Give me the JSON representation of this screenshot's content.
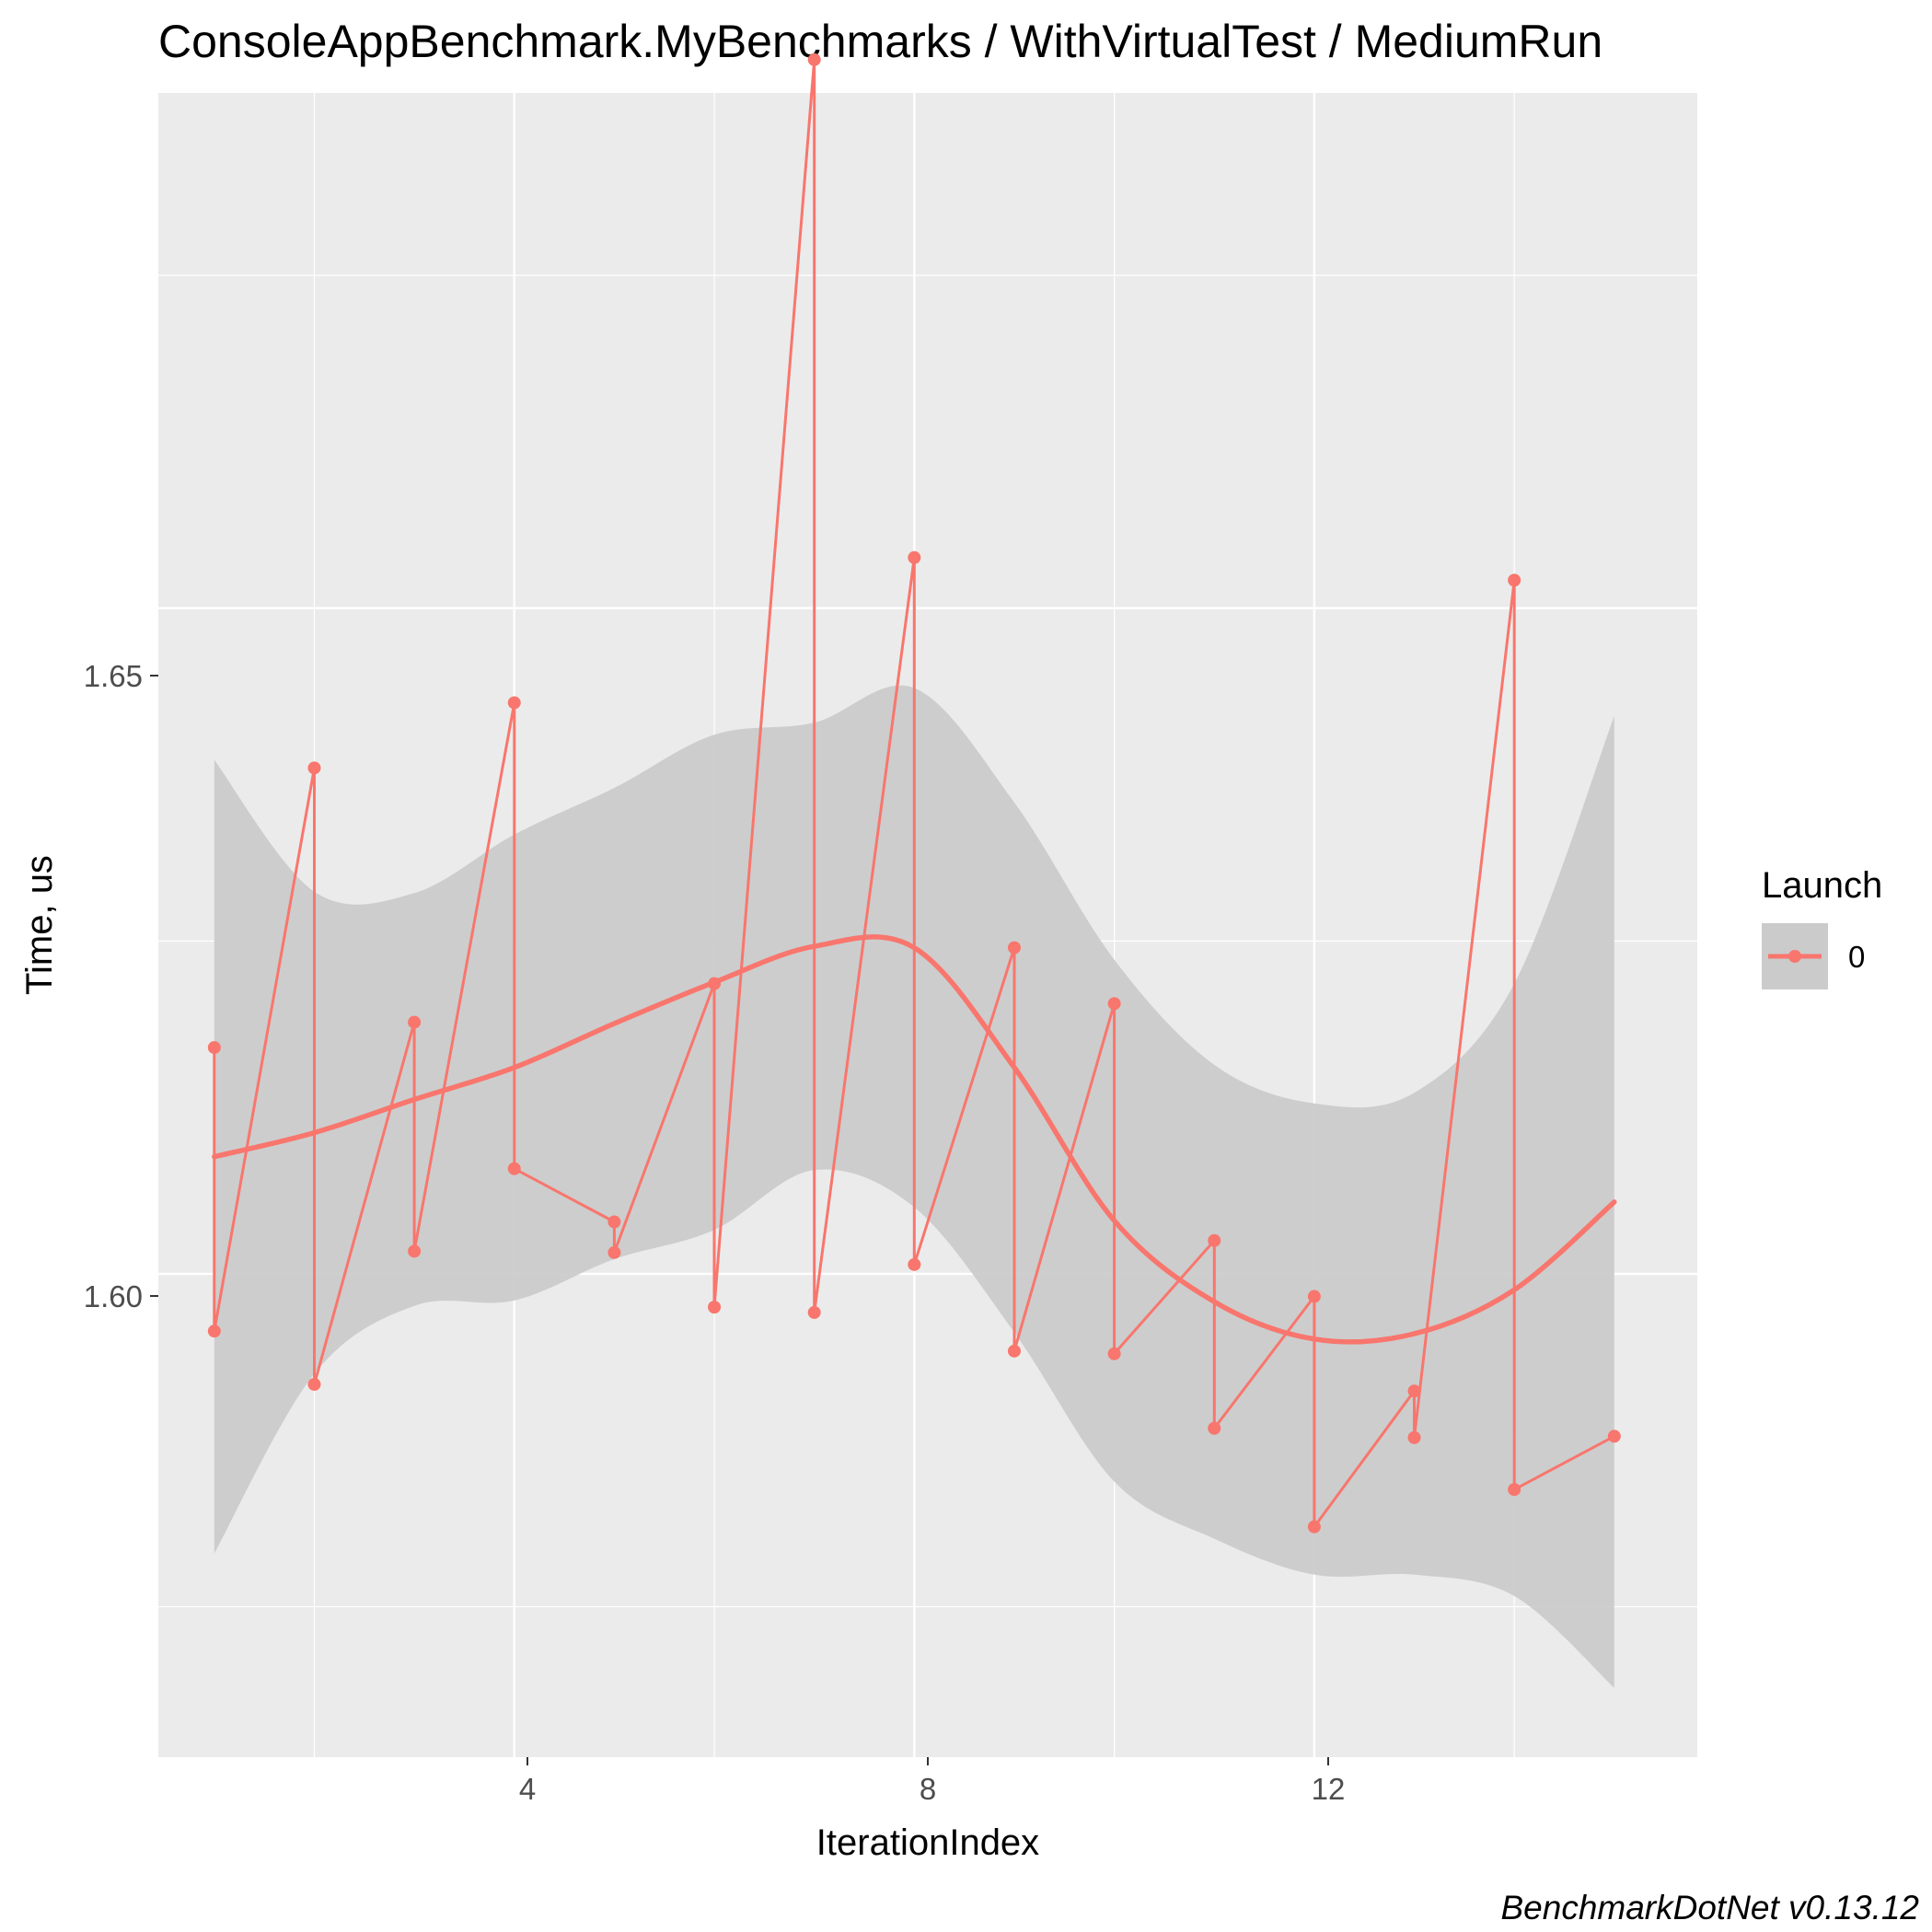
{
  "chart_data": {
    "type": "line",
    "title": "ConsoleAppBenchmark.MyBenchmarks / WithVirtualTest / MediumRun",
    "xlabel": "IterationIndex",
    "ylabel": "Time, us",
    "caption": "BenchmarkDotNet v0.13.12",
    "x_ticks": [
      "4",
      "8",
      "12"
    ],
    "y_ticks": [
      "1.60",
      "1.65"
    ],
    "xlim": [
      0.44,
      15.83
    ],
    "ylim": [
      1.5637,
      1.6887
    ],
    "legend": {
      "title": "Launch",
      "entries": [
        "0"
      ],
      "position": "right"
    },
    "colors": {
      "series": "#f8766d",
      "ribbon": "#cbcbcb",
      "panel": "#ebebeb",
      "grid": "#ffffff"
    },
    "series": [
      {
        "name": "0",
        "points": [
          {
            "x": 1,
            "y": 1.617
          },
          {
            "x": 1,
            "y": 1.5957
          },
          {
            "x": 2,
            "y": 1.638
          },
          {
            "x": 2,
            "y": 1.5917
          },
          {
            "x": 3,
            "y": 1.6189
          },
          {
            "x": 3,
            "y": 1.6017
          },
          {
            "x": 4,
            "y": 1.6429
          },
          {
            "x": 4,
            "y": 1.6079
          },
          {
            "x": 5,
            "y": 1.6039
          },
          {
            "x": 5,
            "y": 1.6016
          },
          {
            "x": 6,
            "y": 1.6218
          },
          {
            "x": 6,
            "y": 1.5975
          },
          {
            "x": 7,
            "y": 1.6912
          },
          {
            "x": 7,
            "y": 1.5971
          },
          {
            "x": 8,
            "y": 1.6538
          },
          {
            "x": 8,
            "y": 1.6007
          },
          {
            "x": 9,
            "y": 1.6245
          },
          {
            "x": 9,
            "y": 1.5942
          },
          {
            "x": 10,
            "y": 1.6203
          },
          {
            "x": 10,
            "y": 1.594
          },
          {
            "x": 11,
            "y": 1.6025
          },
          {
            "x": 11,
            "y": 1.5884
          },
          {
            "x": 12,
            "y": 1.5983
          },
          {
            "x": 12,
            "y": 1.581
          },
          {
            "x": 13,
            "y": 1.5912
          },
          {
            "x": 13,
            "y": 1.5877
          },
          {
            "x": 14,
            "y": 1.6521
          },
          {
            "x": 14,
            "y": 1.5838
          },
          {
            "x": 15,
            "y": 1.5878
          }
        ]
      }
    ],
    "smooth": {
      "x": [
        1,
        2,
        3,
        4,
        5,
        6,
        7,
        8,
        9,
        10,
        11,
        12,
        13,
        14,
        15
      ],
      "y": [
        1.6088,
        1.6106,
        1.6131,
        1.6155,
        1.6188,
        1.6219,
        1.6246,
        1.6245,
        1.6155,
        1.604,
        1.5979,
        1.5951,
        1.5955,
        1.5988,
        1.6054
      ],
      "upper": [
        1.6386,
        1.6287,
        1.6286,
        1.633,
        1.6365,
        1.6405,
        1.6414,
        1.644,
        1.6354,
        1.6236,
        1.6157,
        1.6128,
        1.6136,
        1.6218,
        1.6419
      ],
      "lower": [
        1.579,
        1.5925,
        1.5976,
        1.598,
        1.6011,
        1.6033,
        1.6078,
        1.605,
        1.5956,
        1.5844,
        1.5801,
        1.5774,
        1.5774,
        1.5758,
        1.5689
      ]
    }
  }
}
